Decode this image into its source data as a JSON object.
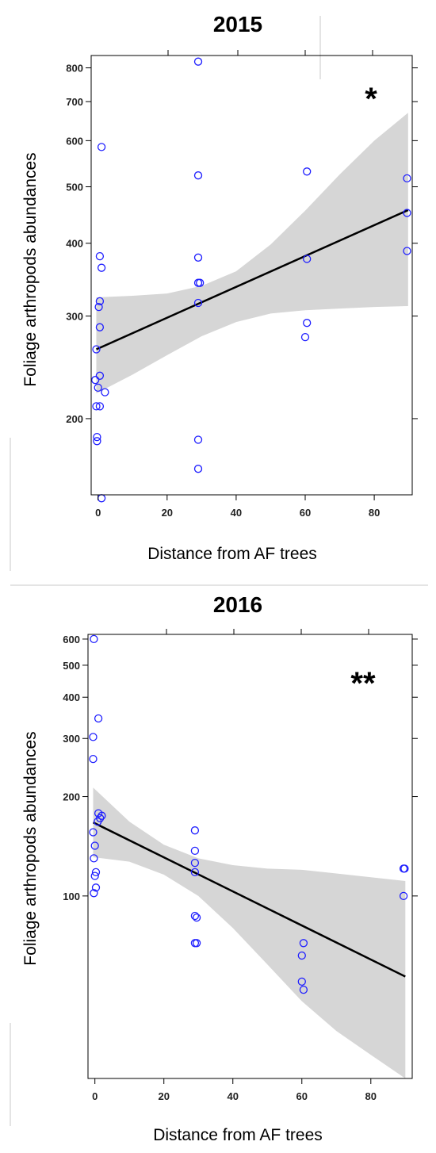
{
  "chart_data": [
    {
      "type": "scatter",
      "title": "2015",
      "xlabel": "Distance from AF trees",
      "ylabel": "Foliage arthropods abundances",
      "annotation": "*",
      "y_scale": "log",
      "xlim": [
        -2,
        91
      ],
      "ylim": [
        148,
        840
      ],
      "x_ticks": [
        0,
        20,
        40,
        60,
        80
      ],
      "y_ticks": [
        200,
        300,
        400,
        500,
        600,
        700,
        800
      ],
      "points": [
        {
          "x": 1,
          "y": 585
        },
        {
          "x": 0.5,
          "y": 380
        },
        {
          "x": 1,
          "y": 363
        },
        {
          "x": 0.5,
          "y": 318
        },
        {
          "x": 0.2,
          "y": 311
        },
        {
          "x": 0.5,
          "y": 287
        },
        {
          "x": -0.5,
          "y": 263
        },
        {
          "x": 0.5,
          "y": 237
        },
        {
          "x": -0.8,
          "y": 233
        },
        {
          "x": 0,
          "y": 226
        },
        {
          "x": 2,
          "y": 222
        },
        {
          "x": -0.5,
          "y": 210
        },
        {
          "x": 0.5,
          "y": 210
        },
        {
          "x": -0.3,
          "y": 186
        },
        {
          "x": -0.3,
          "y": 183
        },
        {
          "x": 29,
          "y": 820
        },
        {
          "x": 29,
          "y": 523
        },
        {
          "x": 29,
          "y": 378
        },
        {
          "x": 29,
          "y": 342
        },
        {
          "x": 29.5,
          "y": 342
        },
        {
          "x": 29,
          "y": 316
        },
        {
          "x": 29,
          "y": 184
        },
        {
          "x": 29,
          "y": 164
        },
        {
          "x": 60.5,
          "y": 531
        },
        {
          "x": 60.5,
          "y": 376
        },
        {
          "x": 60.5,
          "y": 292
        },
        {
          "x": 60,
          "y": 276
        },
        {
          "x": 89.5,
          "y": 517
        },
        {
          "x": 89.5,
          "y": 451
        },
        {
          "x": 89.5,
          "y": 388
        },
        {
          "x": 1,
          "y": 146
        }
      ],
      "fit_line": {
        "x": [
          -0.5,
          89.8
        ],
        "y": [
          263,
          456
        ]
      },
      "confidence_band": {
        "x": [
          -0.5,
          10,
          20,
          30,
          40,
          50,
          60,
          70,
          80,
          89.8
        ],
        "lower": [
          221,
          238,
          257,
          277,
          293,
          303,
          307,
          309,
          311,
          312
        ],
        "upper": [
          323,
          325,
          328,
          338,
          358,
          398,
          455,
          525,
          600,
          670
        ]
      }
    },
    {
      "type": "scatter",
      "title": "2016",
      "xlabel": "Distance from AF trees",
      "ylabel": "Foliage arthropods abundances",
      "annotation": "**",
      "y_scale": "log",
      "xlim": [
        -2,
        92
      ],
      "ylim": [
        28,
        620
      ],
      "x_ticks": [
        0,
        20,
        40,
        60,
        80
      ],
      "y_ticks": [
        100,
        200,
        300,
        400,
        500,
        600
      ],
      "points": [
        {
          "x": -0.3,
          "y": 600
        },
        {
          "x": 1,
          "y": 345
        },
        {
          "x": -0.5,
          "y": 303
        },
        {
          "x": -0.5,
          "y": 260
        },
        {
          "x": 1,
          "y": 178
        },
        {
          "x": 2,
          "y": 175
        },
        {
          "x": 1.5,
          "y": 172
        },
        {
          "x": 0.8,
          "y": 168
        },
        {
          "x": -0.5,
          "y": 156
        },
        {
          "x": 0,
          "y": 142
        },
        {
          "x": -0.3,
          "y": 130
        },
        {
          "x": 0.3,
          "y": 118
        },
        {
          "x": 0,
          "y": 115
        },
        {
          "x": 0.3,
          "y": 106
        },
        {
          "x": -0.3,
          "y": 102
        },
        {
          "x": 29,
          "y": 158
        },
        {
          "x": 29,
          "y": 137
        },
        {
          "x": 29,
          "y": 126
        },
        {
          "x": 29,
          "y": 118
        },
        {
          "x": 29,
          "y": 87
        },
        {
          "x": 29.5,
          "y": 86
        },
        {
          "x": 29,
          "y": 72
        },
        {
          "x": 29.5,
          "y": 72
        },
        {
          "x": 60.5,
          "y": 72
        },
        {
          "x": 60,
          "y": 66
        },
        {
          "x": 60,
          "y": 55
        },
        {
          "x": 60.5,
          "y": 52
        },
        {
          "x": 89.5,
          "y": 121
        },
        {
          "x": 89.8,
          "y": 121
        },
        {
          "x": 89.5,
          "y": 100
        }
      ],
      "fit_line": {
        "x": [
          -0.5,
          90
        ],
        "y": [
          167,
          57
        ]
      },
      "confidence_band": {
        "x": [
          -0.5,
          10,
          20,
          30,
          40,
          50,
          60,
          70,
          80,
          90
        ],
        "lower": [
          131,
          127,
          116,
          100,
          80,
          62,
          48,
          39,
          33,
          28
        ],
        "upper": [
          213,
          168,
          143,
          130,
          124,
          121,
          120,
          117,
          114,
          111
        ]
      }
    }
  ],
  "colors": {
    "point": "#1f1fff",
    "band": "#d6d6d6",
    "line": "#000000"
  }
}
